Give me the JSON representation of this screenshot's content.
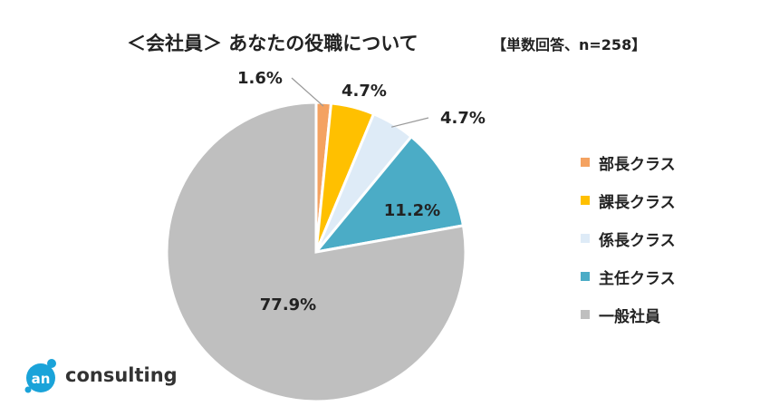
{
  "title": "＜会社員＞ あなたの役職について",
  "sample_note": "【単数回答、n=258】",
  "chart_data": {
    "type": "pie",
    "title": "＜会社員＞ あなたの役職について",
    "subtitle": "【単数回答、n=258】",
    "unit": "%",
    "categories": [
      "部長クラス",
      "課長クラス",
      "係長クラス",
      "主任クラス",
      "一般社員"
    ],
    "values": [
      1.6,
      4.7,
      4.7,
      11.2,
      77.9
    ],
    "labels": [
      "1.6%",
      "4.7%",
      "4.7%",
      "11.2%",
      "77.9%"
    ],
    "colors": [
      "#f4a261",
      "#ffc000",
      "#deebf7",
      "#4bacc6",
      "#bfbfbf"
    ],
    "start": "12 o'clock",
    "direction": "clockwise",
    "legend_position": "right"
  },
  "legend": [
    {
      "label": "部長クラス",
      "color": "#f4a261"
    },
    {
      "label": "課長クラス",
      "color": "#ffc000"
    },
    {
      "label": "係長クラス",
      "color": "#deebf7"
    },
    {
      "label": "主任クラス",
      "color": "#4bacc6"
    },
    {
      "label": "一般社員",
      "color": "#bfbfbf"
    }
  ],
  "logo": {
    "mark": "an",
    "word": "consulting",
    "color": "#1aa3d9"
  }
}
